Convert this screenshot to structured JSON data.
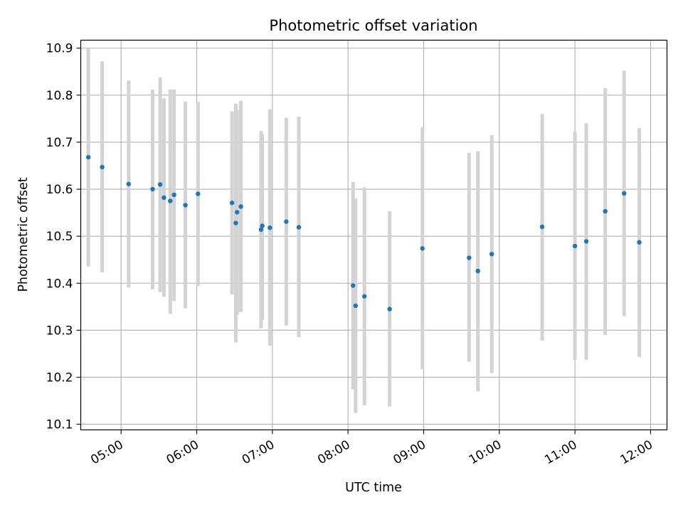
{
  "chart_data": {
    "type": "scatter",
    "title": "Photometric offset variation",
    "xlabel": "UTC time",
    "ylabel": "Photometric offset",
    "xlim": [
      "04:28",
      "12:13"
    ],
    "ylim": [
      10.088,
      10.917
    ],
    "x_ticks": [
      "05:00",
      "06:00",
      "07:00",
      "08:00",
      "09:00",
      "10:00",
      "11:00",
      "12:00"
    ],
    "y_ticks": [
      10.1,
      10.2,
      10.3,
      10.4,
      10.5,
      10.6,
      10.7,
      10.8,
      10.9
    ],
    "grid": true,
    "marker_color": "#1f77b4",
    "errorbar_color": "#d3d3d3",
    "points": [
      {
        "t": "04:34",
        "y": 10.668,
        "lo": 10.436,
        "hi": 10.9
      },
      {
        "t": "04:45",
        "y": 10.647,
        "lo": 10.423,
        "hi": 10.872
      },
      {
        "t": "05:06",
        "y": 10.611,
        "lo": 10.391,
        "hi": 10.831
      },
      {
        "t": "05:25",
        "y": 10.6,
        "lo": 10.387,
        "hi": 10.812
      },
      {
        "t": "05:31",
        "y": 10.61,
        "lo": 10.381,
        "hi": 10.838
      },
      {
        "t": "05:34",
        "y": 10.582,
        "lo": 10.371,
        "hi": 10.793
      },
      {
        "t": "05:39",
        "y": 10.575,
        "lo": 10.335,
        "hi": 10.812
      },
      {
        "t": "05:42",
        "y": 10.588,
        "lo": 10.362,
        "hi": 10.812
      },
      {
        "t": "05:51",
        "y": 10.566,
        "lo": 10.347,
        "hi": 10.786
      },
      {
        "t": "06:01",
        "y": 10.59,
        "lo": 10.394,
        "hi": 10.786
      },
      {
        "t": "06:28",
        "y": 10.571,
        "lo": 10.376,
        "hi": 10.766
      },
      {
        "t": "06:31",
        "y": 10.528,
        "lo": 10.274,
        "hi": 10.782
      },
      {
        "t": "06:32",
        "y": 10.551,
        "lo": 10.333,
        "hi": 10.769
      },
      {
        "t": "06:35",
        "y": 10.563,
        "lo": 10.339,
        "hi": 10.788
      },
      {
        "t": "06:51",
        "y": 10.514,
        "lo": 10.304,
        "hi": 10.724
      },
      {
        "t": "06:52",
        "y": 10.522,
        "lo": 10.322,
        "hi": 10.717
      },
      {
        "t": "06:58",
        "y": 10.518,
        "lo": 10.267,
        "hi": 10.77
      },
      {
        "t": "07:11",
        "y": 10.531,
        "lo": 10.31,
        "hi": 10.752
      },
      {
        "t": "07:21",
        "y": 10.519,
        "lo": 10.285,
        "hi": 10.754
      },
      {
        "t": "08:04",
        "y": 10.395,
        "lo": 10.174,
        "hi": 10.615
      },
      {
        "t": "08:06",
        "y": 10.352,
        "lo": 10.124,
        "hi": 10.58
      },
      {
        "t": "08:13",
        "y": 10.372,
        "lo": 10.14,
        "hi": 10.604
      },
      {
        "t": "08:33",
        "y": 10.345,
        "lo": 10.138,
        "hi": 10.553
      },
      {
        "t": "08:59",
        "y": 10.474,
        "lo": 10.217,
        "hi": 10.732
      },
      {
        "t": "09:36",
        "y": 10.454,
        "lo": 10.233,
        "hi": 10.677
      },
      {
        "t": "09:43",
        "y": 10.426,
        "lo": 10.17,
        "hi": 10.681
      },
      {
        "t": "09:54",
        "y": 10.462,
        "lo": 10.209,
        "hi": 10.715
      },
      {
        "t": "10:34",
        "y": 10.52,
        "lo": 10.278,
        "hi": 10.76
      },
      {
        "t": "11:00",
        "y": 10.479,
        "lo": 10.237,
        "hi": 10.722
      },
      {
        "t": "11:09",
        "y": 10.489,
        "lo": 10.237,
        "hi": 10.74
      },
      {
        "t": "11:24",
        "y": 10.553,
        "lo": 10.29,
        "hi": 10.815
      },
      {
        "t": "11:39",
        "y": 10.591,
        "lo": 10.33,
        "hi": 10.852
      },
      {
        "t": "11:51",
        "y": 10.487,
        "lo": 10.243,
        "hi": 10.73
      }
    ]
  }
}
